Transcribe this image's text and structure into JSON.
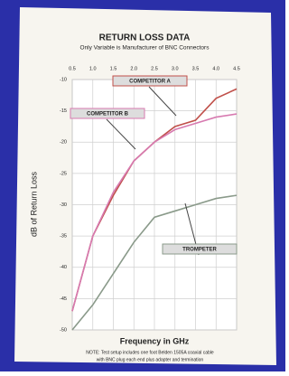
{
  "chart_data": {
    "type": "line",
    "title": "RETURN LOSS DATA",
    "subtitle": "Only Variable is Manufacturer of BNC Connectors",
    "x_label": "Frequency in GHz",
    "y_label": "dB of Return Loss",
    "note_lines": [
      "NOTE: Test setup includes one foot Belden 1505A coaxial cable",
      "with BNC plug each end plus adapter and termination"
    ],
    "x": [
      0.5,
      1.0,
      1.5,
      2.0,
      2.5,
      3.0,
      3.5,
      4.0,
      4.5
    ],
    "series": [
      {
        "name": "COMPETITOR A",
        "color": "#c0504a",
        "values": [
          -47,
          -35,
          -28.5,
          -23,
          -20,
          -17.5,
          -16.5,
          -13,
          -11.5
        ]
      },
      {
        "name": "COMPETITOR B",
        "color": "#d77ab0",
        "values": [
          -47,
          -35,
          -28,
          -23,
          -20,
          -18,
          -17,
          -16,
          -15.5
        ]
      },
      {
        "name": "TROMPETER",
        "color": "#8a9a8a",
        "values": [
          -50,
          -46,
          -41,
          -36,
          -32,
          -31,
          -30,
          -29,
          -28.5
        ]
      }
    ],
    "xlim": [
      0.5,
      4.5
    ],
    "xticks": [
      0.5,
      {
        "value": 1,
        "label": "1.0"
      },
      1.5,
      {
        "value": 2,
        "label": "2.0"
      },
      2.5,
      {
        "value": 3,
        "label": "3.0"
      },
      3.5,
      {
        "value": 4,
        "label": "4.0"
      },
      4.5
    ],
    "ylim": [
      -50,
      -10
    ],
    "yticks": [
      -10,
      -15,
      -20,
      -25,
      -30,
      -35,
      -40,
      -45,
      -50
    ],
    "grid": true
  }
}
